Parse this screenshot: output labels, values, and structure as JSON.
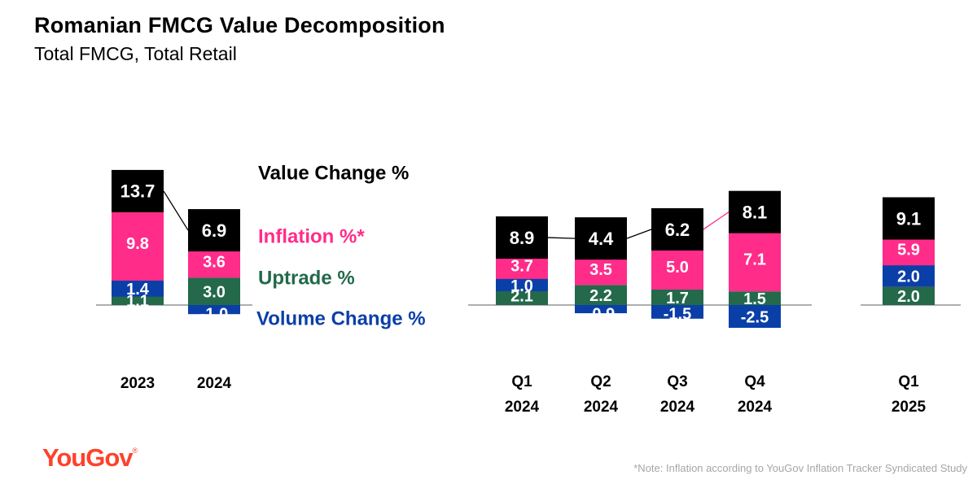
{
  "title": "Romanian FMCG Value Decomposition",
  "subtitle": "Total FMCG, Total Retail",
  "footnote": "*Note: Inflation according to YouGov Inflation Tracker Syndicated Study",
  "logo": "YouGov",
  "colors": {
    "value": "#000000",
    "inflation": "#ff2c8a",
    "uptrade": "#23694a",
    "volume": "#0b3fa8",
    "value_text": "#ffffff",
    "axis": "#7f7f7f",
    "logo": "#ff412c"
  },
  "chart_data": {
    "type": "bar",
    "categories": [
      [
        "2023"
      ],
      [
        "2024"
      ],
      [
        "Q1",
        "2024"
      ],
      [
        "Q2",
        "2024"
      ],
      [
        "Q3",
        "2024"
      ],
      [
        "Q4",
        "2024"
      ],
      [
        "Q1",
        "2025"
      ]
    ],
    "series": [
      {
        "name": "Value Change %",
        "values": [
          13.7,
          6.9,
          8.9,
          4.4,
          6.2,
          8.1,
          9.1
        ]
      },
      {
        "name": "Inflation %*",
        "values": [
          9.8,
          3.6,
          3.7,
          3.5,
          5.0,
          7.1,
          5.9
        ]
      },
      {
        "name": "Uptrade %",
        "values": [
          1.1,
          3.0,
          2.1,
          2.2,
          1.7,
          1.5,
          2.0
        ]
      },
      {
        "name": "Volume Change %",
        "values": [
          1.4,
          -1.0,
          1.0,
          -0.9,
          -1.5,
          -2.5,
          2.0
        ]
      }
    ],
    "labels": {
      "value": [
        "13.7",
        "6.9",
        "8.9",
        "4.4",
        "6.2",
        "8.1",
        "9.1"
      ],
      "inflation": [
        "9.8",
        "3.6",
        "3.7",
        "3.5",
        "5.0",
        "7.1",
        "5.9"
      ],
      "uptrade": [
        "1.1",
        "3.0",
        "2.1",
        "2.2",
        "1.7",
        "1.5",
        "2.0"
      ],
      "volume": [
        "1.4",
        "-1.0",
        "1.0",
        "-0.9",
        "-1.5",
        "-2.5",
        "2.0"
      ]
    },
    "legend": [
      "Value Change %",
      "Inflation %*",
      "Uptrade %",
      "Volume Change %"
    ],
    "legend_placement": "inline-right-of-2024",
    "groups": [
      "annual",
      "quarterly",
      "latest"
    ],
    "grid": false
  }
}
